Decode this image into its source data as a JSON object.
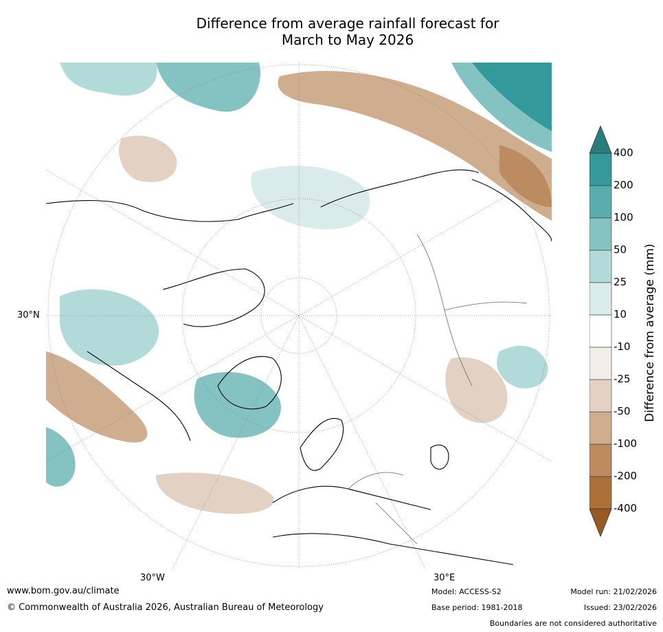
{
  "title": {
    "line1": "Difference from average rainfall forecast for",
    "line2": "March to May 2026"
  },
  "map": {
    "projection": "north-polar-stereographic",
    "graticule": {
      "lon_labels": [
        "30°W",
        "30°E"
      ],
      "lat_labels": [
        "30°N"
      ]
    }
  },
  "legend": {
    "title": "Difference from average (mm)",
    "labels": [
      "400",
      "200",
      "100",
      "50",
      "25",
      "10",
      "-10",
      "-25",
      "-50",
      "-100",
      "-200",
      "-400"
    ],
    "colors": [
      "#2a7d7a",
      "#33999a",
      "#5aadae",
      "#84c3c2",
      "#b1dad8",
      "#d9ecea",
      "#ffffff",
      "#f2eee9",
      "#e3d2c3",
      "#cfad8f",
      "#bc8c60",
      "#ab7038",
      "#995a22"
    ]
  },
  "footer": {
    "website": "www.bom.gov.au/climate",
    "copyright": "© Commonwealth of Australia 2026, Australian Bureau of Meteorology",
    "model": "Model: ACCESS-S2",
    "base_period": "Base period: 1981-2018",
    "model_run": "Model run: 21/02/2026",
    "issued": "Issued: 23/02/2026",
    "disclaimer": "Boundaries are not considered authoritative"
  }
}
